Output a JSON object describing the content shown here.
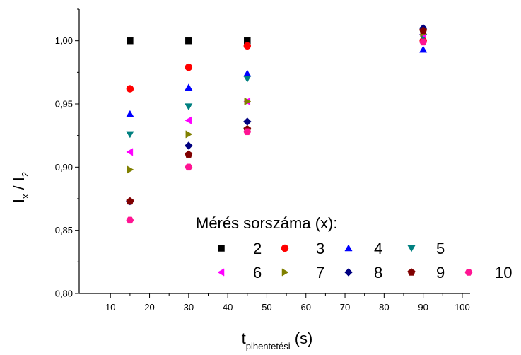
{
  "chart_data": {
    "type": "scatter",
    "title": "",
    "xlabel": {
      "main": "t",
      "sub": "pihentetési",
      "unit": "(s)"
    },
    "ylabel": {
      "main": "I",
      "sub_x": "x",
      "slash": "/",
      "main2": "I",
      "sub_2": "2"
    },
    "xlim": [
      2,
      102
    ],
    "ylim": [
      0.8,
      1.025
    ],
    "xticks": [
      10,
      20,
      30,
      40,
      50,
      60,
      70,
      80,
      90,
      100
    ],
    "yticks": [
      0.8,
      0.85,
      0.9,
      0.95,
      1.0
    ],
    "ytick_labels": [
      "0,80",
      "0,85",
      "0,90",
      "0,95",
      "1,00"
    ],
    "grid": false,
    "legend": {
      "title": "Mérés sorszáma (x):",
      "position": "bottom-right"
    },
    "series": [
      {
        "name": "2",
        "marker": "square",
        "color": "#000000",
        "x": [
          15,
          30,
          45
        ],
        "y": [
          1.0,
          1.0,
          1.0
        ]
      },
      {
        "name": "3",
        "marker": "circle",
        "color": "#ff0000",
        "x": [
          15,
          30,
          45,
          90
        ],
        "y": [
          0.962,
          0.979,
          0.996,
          1.0
        ]
      },
      {
        "name": "4",
        "marker": "triangle-up",
        "color": "#0000ff",
        "x": [
          15,
          30,
          45,
          90
        ],
        "y": [
          0.942,
          0.963,
          0.974,
          0.993
        ]
      },
      {
        "name": "5",
        "marker": "triangle-down",
        "color": "#008080",
        "x": [
          15,
          30,
          45,
          90
        ],
        "y": [
          0.926,
          0.948,
          0.97,
          1.003
        ]
      },
      {
        "name": "6",
        "marker": "triangle-left",
        "color": "#ff00ff",
        "x": [
          15,
          30,
          45,
          90
        ],
        "y": [
          0.912,
          0.937,
          0.952,
          1.005
        ]
      },
      {
        "name": "7",
        "marker": "triangle-right",
        "color": "#808000",
        "x": [
          15,
          30,
          45,
          90
        ],
        "y": [
          0.898,
          0.926,
          0.952,
          1.006
        ]
      },
      {
        "name": "8",
        "marker": "diamond",
        "color": "#000080",
        "x": [
          15,
          30,
          45,
          90
        ],
        "y": [
          0.873,
          0.917,
          0.936,
          1.01
        ]
      },
      {
        "name": "9",
        "marker": "pentagon",
        "color": "#800000",
        "x": [
          15,
          30,
          45,
          90
        ],
        "y": [
          0.873,
          0.91,
          0.93,
          1.008
        ]
      },
      {
        "name": "10",
        "marker": "hexagon",
        "color": "#ff1493",
        "x": [
          15,
          30,
          45,
          90
        ],
        "y": [
          0.858,
          0.9,
          0.928,
          0.999
        ]
      }
    ]
  }
}
